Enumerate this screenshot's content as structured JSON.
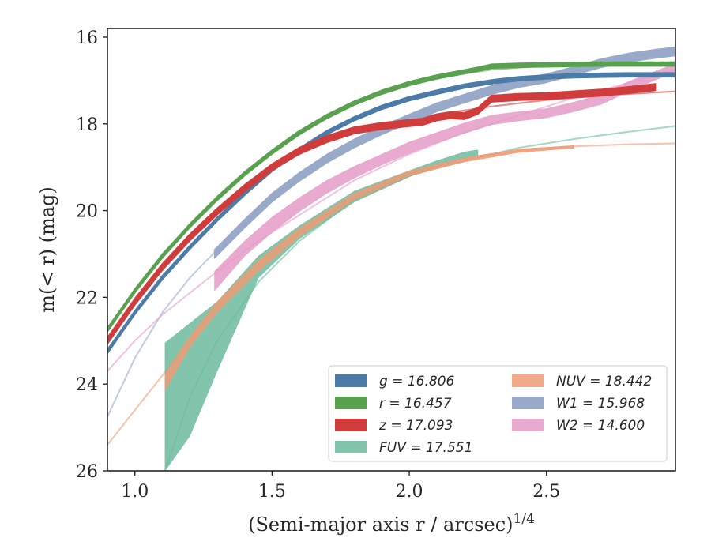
{
  "chart_data": {
    "type": "line",
    "title": "",
    "xlabel": "(Semi-major axis r / arcsec)",
    "xlabel_sup": "1/4",
    "ylabel": "m(< r) (mag)",
    "xlim": [
      0.9,
      2.97
    ],
    "ylim": [
      26,
      15.8
    ],
    "y_inverted": true,
    "grid": false,
    "legend_placement": "lower-right",
    "legend_columns": 2,
    "x_ticks": [
      {
        "value": 1.0,
        "label": "1.0"
      },
      {
        "value": 1.5,
        "label": "1.5"
      },
      {
        "value": 2.0,
        "label": "2.0"
      },
      {
        "value": 2.5,
        "label": "2.5"
      }
    ],
    "y_ticks": [
      {
        "value": 16,
        "label": "16"
      },
      {
        "value": 18,
        "label": "18"
      },
      {
        "value": 20,
        "label": "20"
      },
      {
        "value": 22,
        "label": "22"
      },
      {
        "value": 24,
        "label": "24"
      },
      {
        "value": 26,
        "label": "26"
      }
    ],
    "series": [
      {
        "name": "g = 16.806",
        "legend_var": "g",
        "legend_value": "16.806",
        "color": "#4c7ba8",
        "band_halfwidth": 0.05,
        "x": [
          0.9,
          1.0,
          1.1,
          1.2,
          1.3,
          1.4,
          1.5,
          1.6,
          1.7,
          1.8,
          1.9,
          2.0,
          2.1,
          2.2,
          2.3,
          2.4,
          2.5,
          2.6,
          2.7,
          2.8,
          2.97
        ],
        "y": [
          23.25,
          22.35,
          21.55,
          20.85,
          20.2,
          19.6,
          19.05,
          18.6,
          18.2,
          17.88,
          17.62,
          17.42,
          17.27,
          17.13,
          17.03,
          16.96,
          16.92,
          16.89,
          16.88,
          16.87,
          16.87
        ],
        "model_x": [
          0.9,
          1.1,
          1.3,
          1.5,
          1.7,
          1.9,
          2.1,
          2.3,
          2.5,
          2.7,
          2.97
        ],
        "model_y": [
          23.2,
          21.5,
          20.2,
          19.05,
          18.2,
          17.62,
          17.28,
          17.05,
          16.93,
          16.87,
          16.83
        ]
      },
      {
        "name": "r = 16.457",
        "legend_var": "r",
        "legend_value": "16.457",
        "color": "#59a14f",
        "band_halfwidth": 0.05,
        "x": [
          0.9,
          1.0,
          1.1,
          1.2,
          1.3,
          1.4,
          1.5,
          1.6,
          1.7,
          1.8,
          1.9,
          2.0,
          2.1,
          2.2,
          2.25,
          2.3,
          2.4,
          2.5,
          2.6,
          2.7,
          2.8,
          2.97
        ],
        "y": [
          22.75,
          21.85,
          21.05,
          20.35,
          19.72,
          19.15,
          18.65,
          18.2,
          17.83,
          17.52,
          17.27,
          17.07,
          16.92,
          16.8,
          16.74,
          16.67,
          16.65,
          16.64,
          16.63,
          16.62,
          16.62,
          16.62
        ],
        "model_x": [
          0.9,
          1.1,
          1.3,
          1.5,
          1.7,
          1.9,
          2.1,
          2.3,
          2.5,
          2.7,
          2.97
        ],
        "model_y": [
          22.7,
          21.0,
          19.7,
          18.65,
          17.85,
          17.28,
          16.93,
          16.75,
          16.66,
          16.61,
          16.58
        ]
      },
      {
        "name": "z = 17.093",
        "legend_var": "z",
        "legend_value": "17.093",
        "color": "#d03c3c",
        "band_halfwidth": 0.08,
        "x": [
          0.9,
          1.0,
          1.1,
          1.2,
          1.3,
          1.4,
          1.5,
          1.6,
          1.7,
          1.8,
          1.9,
          2.0,
          2.05,
          2.1,
          2.15,
          2.2,
          2.25,
          2.3,
          2.4,
          2.5,
          2.6,
          2.7,
          2.8,
          2.9
        ],
        "y": [
          23.0,
          22.1,
          21.3,
          20.62,
          20.02,
          19.48,
          19.0,
          18.62,
          18.35,
          18.15,
          18.05,
          17.98,
          17.95,
          17.85,
          17.8,
          17.82,
          17.7,
          17.42,
          17.38,
          17.36,
          17.32,
          17.28,
          17.22,
          17.15
        ],
        "model_x": [
          0.9,
          1.1,
          1.3,
          1.5,
          1.7,
          1.9,
          2.1,
          2.3,
          2.5,
          2.7,
          2.97
        ],
        "model_y": [
          23.0,
          21.3,
          20.0,
          19.0,
          18.4,
          18.02,
          17.78,
          17.6,
          17.45,
          17.35,
          17.25
        ]
      },
      {
        "name": "FUV = 17.551",
        "legend_var": "FUV",
        "legend_value": "17.551",
        "color": "#6dbb9d",
        "x": [
          1.11,
          1.2,
          1.3,
          1.45,
          1.6,
          1.8,
          2.0,
          2.1,
          2.2,
          2.25
        ],
        "y_upper": [
          23.05,
          22.6,
          22.1,
          21.05,
          20.35,
          19.55,
          19.08,
          18.85,
          18.65,
          18.6
        ],
        "y_lower": [
          26.0,
          25.2,
          23.7,
          21.55,
          20.65,
          19.8,
          19.22,
          19.0,
          18.8,
          18.75
        ],
        "model_x": [
          1.11,
          1.2,
          1.3,
          1.45,
          1.6,
          1.8,
          2.0,
          2.2,
          2.4,
          2.6,
          2.8,
          2.97
        ],
        "model_y": [
          26.0,
          24.3,
          23.0,
          21.65,
          20.7,
          19.75,
          19.2,
          18.85,
          18.55,
          18.35,
          18.18,
          18.05
        ]
      },
      {
        "name": "NUV = 18.442",
        "legend_var": "NUV",
        "legend_value": "18.442",
        "color": "#ed9b76",
        "x": [
          1.11,
          1.2,
          1.3,
          1.45,
          1.6,
          1.8,
          2.0,
          2.2,
          2.4,
          2.6
        ],
        "y_upper": [
          23.75,
          22.9,
          22.1,
          21.15,
          20.4,
          19.6,
          19.08,
          18.78,
          18.58,
          18.5
        ],
        "y_lower": [
          24.15,
          23.15,
          22.35,
          21.4,
          20.6,
          19.75,
          19.2,
          18.88,
          18.66,
          18.56
        ],
        "model_x": [
          0.9,
          1.0,
          1.1,
          1.2,
          1.3,
          1.45,
          1.6,
          1.8,
          2.0,
          2.2,
          2.4,
          2.6,
          2.8,
          2.97
        ],
        "model_y": [
          25.4,
          24.6,
          23.8,
          23.0,
          22.2,
          21.25,
          20.5,
          19.7,
          19.15,
          18.83,
          18.62,
          18.52,
          18.47,
          18.45
        ]
      },
      {
        "name": "W1 = 15.968",
        "legend_var": "W1",
        "legend_value": "15.968",
        "color": "#99a9c9",
        "band_halfwidth": 0.1,
        "x": [
          1.29,
          1.4,
          1.5,
          1.6,
          1.7,
          1.8,
          1.9,
          2.0,
          2.1,
          2.2,
          2.3,
          2.4,
          2.5,
          2.6,
          2.7,
          2.8,
          2.9,
          2.97
        ],
        "y": [
          21.0,
          20.3,
          19.7,
          19.22,
          18.8,
          18.45,
          18.15,
          17.88,
          17.62,
          17.42,
          17.22,
          17.06,
          16.95,
          16.78,
          16.6,
          16.47,
          16.38,
          16.33
        ],
        "model_x": [
          0.9,
          1.0,
          1.1,
          1.2,
          1.3,
          1.4,
          1.5,
          1.7,
          1.9,
          2.1,
          2.3,
          2.5,
          2.7,
          2.97
        ],
        "model_y": [
          24.75,
          23.4,
          22.35,
          21.55,
          20.9,
          20.3,
          19.75,
          18.85,
          18.2,
          17.65,
          17.22,
          16.9,
          16.65,
          16.42
        ]
      },
      {
        "name": "W2 = 14.600",
        "legend_var": "W2",
        "legend_value": "14.600",
        "color": "#e59bc8",
        "x": [
          1.29,
          1.4,
          1.5,
          1.6,
          1.7,
          1.8,
          1.9,
          2.0,
          2.1,
          2.2,
          2.3,
          2.4,
          2.5,
          2.6,
          2.7,
          2.8,
          2.9,
          2.97
        ],
        "y_upper": [
          21.4,
          20.7,
          20.15,
          19.7,
          19.3,
          18.98,
          18.7,
          18.42,
          18.2,
          17.98,
          17.8,
          17.72,
          17.65,
          17.5,
          17.32,
          17.02,
          16.78,
          16.6
        ],
        "y_lower": [
          21.85,
          21.05,
          20.5,
          20.02,
          19.6,
          19.25,
          18.95,
          18.68,
          18.44,
          18.22,
          18.02,
          17.93,
          17.86,
          17.72,
          17.55,
          17.25,
          16.98,
          16.8
        ],
        "model_x": [
          0.9,
          1.0,
          1.1,
          1.2,
          1.3,
          1.45,
          1.6,
          1.8,
          2.0,
          2.2,
          2.4,
          2.6,
          2.8,
          2.97
        ],
        "model_y": [
          23.7,
          23.0,
          22.4,
          21.9,
          21.4,
          20.7,
          20.1,
          19.3,
          18.7,
          18.2,
          17.8,
          17.4,
          17.05,
          16.75
        ]
      }
    ]
  }
}
